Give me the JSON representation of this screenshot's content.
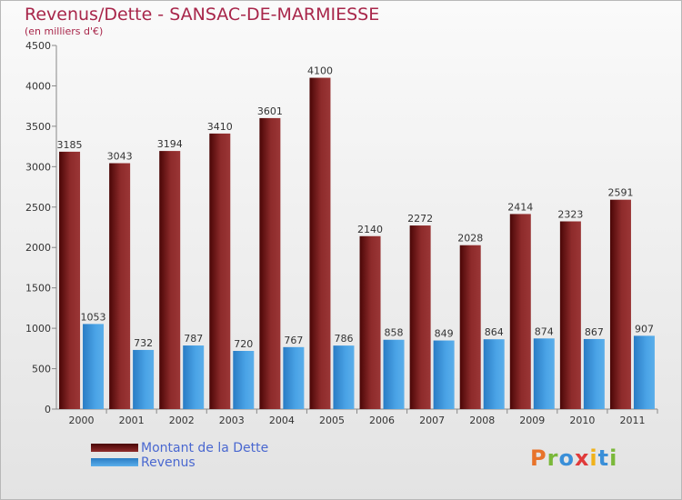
{
  "title": "Revenus/Dette - SANSAC-DE-MARMIESSE",
  "subtitle": "(en milliers d'€)",
  "logo_text": "Proxiti",
  "colors": {
    "dette": "#7a1a1a",
    "revenus": "#3a93d8",
    "title": "#a8264a",
    "legend_text": "#4a68d0"
  },
  "chart_data": {
    "type": "bar",
    "categories": [
      "2000",
      "2001",
      "2002",
      "2003",
      "2004",
      "2005",
      "2006",
      "2007",
      "2008",
      "2009",
      "2010",
      "2011"
    ],
    "series": [
      {
        "name": "Montant de la Dette",
        "values": [
          3185,
          3043,
          3194,
          3410,
          3601,
          4100,
          2140,
          2272,
          2028,
          2414,
          2323,
          2591
        ]
      },
      {
        "name": "Revenus",
        "values": [
          1053,
          732,
          787,
          720,
          767,
          786,
          858,
          849,
          864,
          874,
          867,
          907
        ]
      }
    ],
    "ylim": [
      0,
      4500
    ],
    "yticks": [
      0,
      500,
      1000,
      1500,
      2000,
      2500,
      3000,
      3500,
      4000,
      4500
    ],
    "grid": false,
    "legend_position": "bottom-left"
  }
}
